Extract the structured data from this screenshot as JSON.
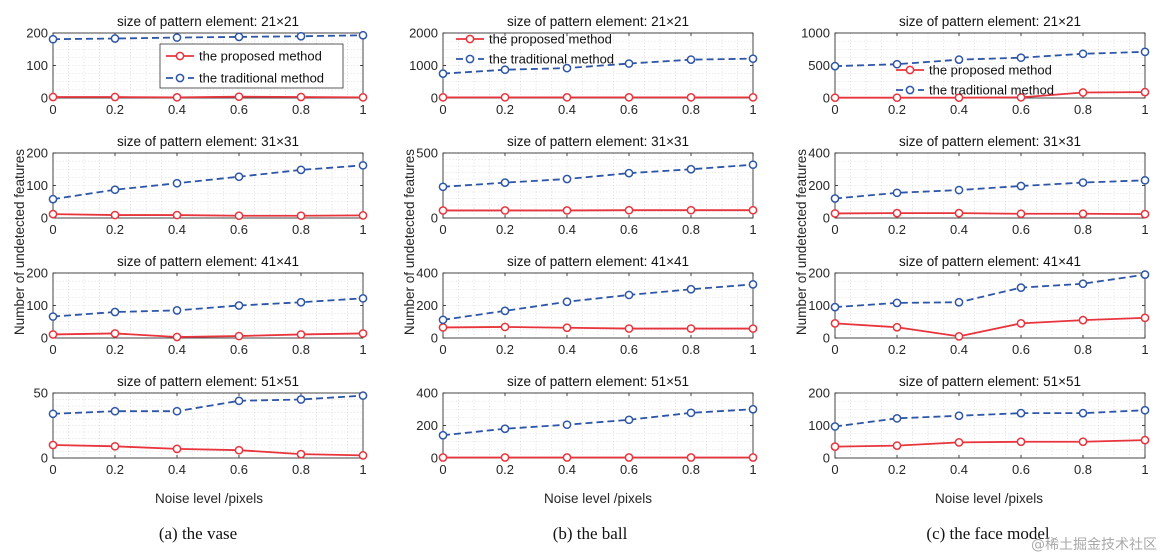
{
  "figure": {
    "xlabel": "Noise level /pixels",
    "ylabel": "Number of undetected features",
    "watermark": "@稀土掘金技术社区",
    "colors": {
      "proposed": "#e8343c",
      "traditional": "#2d55a8",
      "grid": "#d0d0d0"
    }
  },
  "legend": {
    "proposed": "the proposed method",
    "traditional": "the traditional method"
  },
  "chart_data": [
    {
      "type": "line",
      "column": "(a) the vase",
      "title": "size of pattern element: 21×21",
      "x": [
        0,
        0.2,
        0.4,
        0.6,
        0.8,
        1
      ],
      "xlim": [
        0,
        1
      ],
      "xticks": [
        "0",
        "0.2",
        "0.4",
        "0.6",
        "0.8",
        "1"
      ],
      "ylim": [
        0,
        200
      ],
      "yticks": [
        0,
        100,
        200
      ],
      "legend": true,
      "series": [
        {
          "name": "the proposed method",
          "style": "solid",
          "values": [
            3,
            3,
            2,
            4,
            3,
            2
          ]
        },
        {
          "name": "the traditional method",
          "style": "dashed",
          "values": [
            181,
            183,
            186,
            188,
            190,
            193
          ]
        }
      ]
    },
    {
      "type": "line",
      "column": "(b) the ball",
      "title": "size of pattern element: 21×21",
      "x": [
        0,
        0.2,
        0.4,
        0.6,
        0.8,
        1
      ],
      "xlim": [
        0,
        1
      ],
      "xticks": [
        "0",
        "0.2",
        "0.4",
        "0.6",
        "0.8",
        "1"
      ],
      "ylim": [
        0,
        2000
      ],
      "yticks": [
        0,
        1000,
        2000
      ],
      "legend": true,
      "series": [
        {
          "name": "the proposed method",
          "style": "solid",
          "values": [
            20,
            20,
            20,
            20,
            20,
            20
          ]
        },
        {
          "name": "the traditional method",
          "style": "dashed",
          "values": [
            750,
            870,
            920,
            1060,
            1180,
            1210
          ]
        }
      ]
    },
    {
      "type": "line",
      "column": "(c) the face model",
      "title": "size of pattern element: 21×21",
      "x": [
        0,
        0.2,
        0.4,
        0.6,
        0.8,
        1
      ],
      "xlim": [
        0,
        1
      ],
      "xticks": [
        "0",
        "0.2",
        "0.4",
        "0.6",
        "0.8",
        "1"
      ],
      "ylim": [
        0,
        1000
      ],
      "yticks": [
        0,
        500,
        1000
      ],
      "legend": true,
      "series": [
        {
          "name": "the proposed method",
          "style": "solid",
          "values": [
            5,
            5,
            5,
            10,
            85,
            90
          ]
        },
        {
          "name": "the traditional method",
          "style": "dashed",
          "values": [
            490,
            520,
            590,
            620,
            680,
            710
          ]
        }
      ]
    },
    {
      "type": "line",
      "column": "(a) the vase",
      "title": "size of pattern element: 31×31",
      "x": [
        0,
        0.2,
        0.4,
        0.6,
        0.8,
        1
      ],
      "xlim": [
        0,
        1
      ],
      "xticks": [
        "0",
        "0.2",
        "0.4",
        "0.6",
        "0.8",
        "1"
      ],
      "ylim": [
        0,
        200
      ],
      "yticks": [
        0,
        100,
        200
      ],
      "legend": false,
      "series": [
        {
          "name": "the proposed method",
          "style": "solid",
          "values": [
            12,
            9,
            9,
            7,
            7,
            8
          ]
        },
        {
          "name": "the traditional method",
          "style": "dashed",
          "values": [
            58,
            87,
            107,
            127,
            148,
            162
          ]
        }
      ]
    },
    {
      "type": "line",
      "column": "(b) the ball",
      "title": "size of pattern element: 31×31",
      "x": [
        0,
        0.2,
        0.4,
        0.6,
        0.8,
        1
      ],
      "xlim": [
        0,
        1
      ],
      "xticks": [
        "0",
        "0.2",
        "0.4",
        "0.6",
        "0.8",
        "1"
      ],
      "ylim": [
        0,
        500
      ],
      "yticks": [
        0,
        500
      ],
      "legend": false,
      "series": [
        {
          "name": "the proposed method",
          "style": "solid",
          "values": [
            58,
            58,
            58,
            60,
            60,
            60
          ]
        },
        {
          "name": "the traditional method",
          "style": "dashed",
          "values": [
            240,
            272,
            300,
            345,
            375,
            410
          ]
        }
      ]
    },
    {
      "type": "line",
      "column": "(c) the face model",
      "title": "size of pattern element: 31×31",
      "x": [
        0,
        0.2,
        0.4,
        0.6,
        0.8,
        1
      ],
      "xlim": [
        0,
        1
      ],
      "xticks": [
        "0",
        "0.2",
        "0.4",
        "0.6",
        "0.8",
        "1"
      ],
      "ylim": [
        0,
        400
      ],
      "yticks": [
        0,
        200,
        400
      ],
      "legend": false,
      "series": [
        {
          "name": "the proposed method",
          "style": "solid",
          "values": [
            28,
            30,
            30,
            26,
            26,
            24
          ]
        },
        {
          "name": "the traditional method",
          "style": "dashed",
          "values": [
            120,
            155,
            172,
            197,
            218,
            232
          ]
        }
      ]
    },
    {
      "type": "line",
      "column": "(a) the vase",
      "title": "size of pattern element: 41×41",
      "x": [
        0,
        0.2,
        0.4,
        0.6,
        0.8,
        1
      ],
      "xlim": [
        0,
        1
      ],
      "xticks": [
        "0",
        "0.2",
        "0.4",
        "0.6",
        "0.8",
        "1"
      ],
      "ylim": [
        0,
        200
      ],
      "yticks": [
        0,
        100,
        200
      ],
      "legend": false,
      "series": [
        {
          "name": "the proposed method",
          "style": "solid",
          "values": [
            11,
            14,
            3,
            6,
            11,
            14
          ]
        },
        {
          "name": "the traditional method",
          "style": "dashed",
          "values": [
            66,
            80,
            85,
            100,
            110,
            122
          ]
        }
      ]
    },
    {
      "type": "line",
      "column": "(b) the ball",
      "title": "size of pattern element: 41×41",
      "x": [
        0,
        0.2,
        0.4,
        0.6,
        0.8,
        1
      ],
      "xlim": [
        0,
        1
      ],
      "xticks": [
        "0",
        "0.2",
        "0.4",
        "0.6",
        "0.8",
        "1"
      ],
      "ylim": [
        0,
        400
      ],
      "yticks": [
        0,
        200,
        400
      ],
      "legend": false,
      "series": [
        {
          "name": "the proposed method",
          "style": "solid",
          "values": [
            65,
            68,
            63,
            58,
            58,
            58
          ]
        },
        {
          "name": "the traditional method",
          "style": "dashed",
          "values": [
            112,
            167,
            223,
            265,
            300,
            330
          ]
        }
      ]
    },
    {
      "type": "line",
      "column": "(c) the face model",
      "title": "size of pattern element: 41×41",
      "x": [
        0,
        0.2,
        0.4,
        0.6,
        0.8,
        1
      ],
      "xlim": [
        0,
        1
      ],
      "xticks": [
        "0",
        "0.2",
        "0.4",
        "0.6",
        "0.8",
        "1"
      ],
      "ylim": [
        0,
        200
      ],
      "yticks": [
        0,
        100,
        200
      ],
      "legend": false,
      "series": [
        {
          "name": "the proposed method",
          "style": "solid",
          "values": [
            45,
            33,
            5,
            45,
            55,
            62
          ]
        },
        {
          "name": "the traditional method",
          "style": "dashed",
          "values": [
            95,
            108,
            110,
            155,
            167,
            195
          ]
        }
      ]
    },
    {
      "type": "line",
      "column": "(a) the vase",
      "title": "size of pattern element: 51×51",
      "x": [
        0,
        0.2,
        0.4,
        0.6,
        0.8,
        1
      ],
      "xlim": [
        0,
        1
      ],
      "xticks": [
        "0",
        "0.2",
        "0.4",
        "0.6",
        "0.8",
        "1"
      ],
      "ylim": [
        0,
        50
      ],
      "yticks": [
        0,
        50
      ],
      "legend": false,
      "series": [
        {
          "name": "the proposed method",
          "style": "solid",
          "values": [
            10,
            9,
            7,
            6,
            3,
            2
          ]
        },
        {
          "name": "the traditional method",
          "style": "dashed",
          "values": [
            34,
            36,
            36,
            44,
            45,
            48
          ]
        }
      ]
    },
    {
      "type": "line",
      "column": "(b) the ball",
      "title": "size of pattern element: 51×51",
      "x": [
        0,
        0.2,
        0.4,
        0.6,
        0.8,
        1
      ],
      "xlim": [
        0,
        1
      ],
      "xticks": [
        "0",
        "0.2",
        "0.4",
        "0.6",
        "0.8",
        "1"
      ],
      "ylim": [
        0,
        400
      ],
      "yticks": [
        0,
        200,
        400
      ],
      "legend": false,
      "series": [
        {
          "name": "the proposed method",
          "style": "solid",
          "values": [
            3,
            3,
            3,
            3,
            3,
            3
          ]
        },
        {
          "name": "the traditional method",
          "style": "dashed",
          "values": [
            140,
            180,
            205,
            235,
            278,
            300
          ]
        }
      ]
    },
    {
      "type": "line",
      "column": "(c) the face model",
      "title": "size of pattern element: 51×51",
      "x": [
        0,
        0.2,
        0.4,
        0.6,
        0.8,
        1
      ],
      "xlim": [
        0,
        1
      ],
      "xticks": [
        "0",
        "0.2",
        "0.4",
        "0.6",
        "0.8",
        "1"
      ],
      "ylim": [
        0,
        200
      ],
      "yticks": [
        0,
        100,
        200
      ],
      "legend": false,
      "series": [
        {
          "name": "the proposed method",
          "style": "solid",
          "values": [
            35,
            38,
            48,
            50,
            50,
            55
          ]
        },
        {
          "name": "the traditional method",
          "style": "dashed",
          "values": [
            97,
            122,
            130,
            138,
            138,
            147
          ]
        }
      ]
    }
  ]
}
